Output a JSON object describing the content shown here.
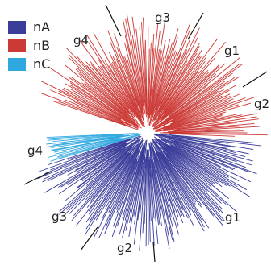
{
  "colors": {
    "nA": "#3a3c9a",
    "nB": "#cc3a36",
    "nC": "#2fa8e0"
  },
  "legend": [
    {
      "label": "nA",
      "color_key": "nA"
    },
    {
      "label": "nB",
      "color_key": "nB"
    },
    {
      "label": "nC",
      "color_key": "nC"
    }
  ],
  "group_labels": {
    "red": [
      "g3",
      "g4",
      "g1",
      "g2"
    ],
    "blue": [
      "g4",
      "g3",
      "g2",
      "g1"
    ]
  }
}
